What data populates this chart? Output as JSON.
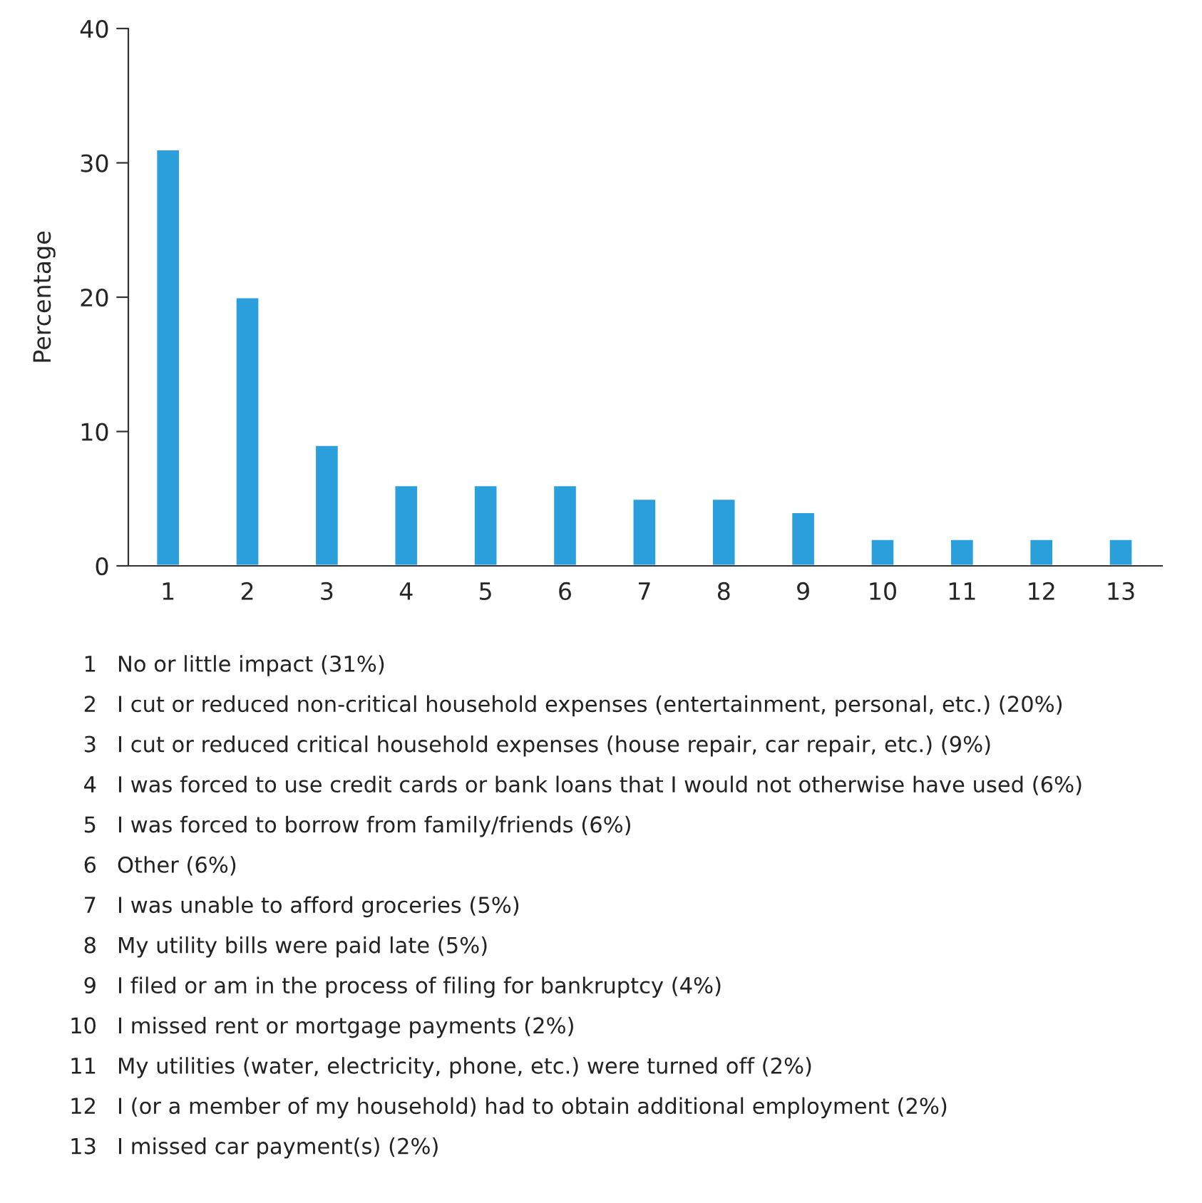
{
  "chart_data": {
    "type": "bar",
    "ylabel": "Percentage",
    "categories": [
      "1",
      "2",
      "3",
      "4",
      "5",
      "6",
      "7",
      "8",
      "9",
      "10",
      "11",
      "12",
      "13"
    ],
    "values": [
      31,
      20,
      9,
      6,
      6,
      6,
      5,
      5,
      4,
      2,
      2,
      2,
      2
    ],
    "color": "#2b9fdc",
    "ylim": [
      0,
      40
    ],
    "yticks": [
      0,
      10,
      20,
      30,
      40
    ],
    "grid": false,
    "annotations": [
      "No or little impact (31%)",
      "I cut or reduced non-critical household expenses (entertainment, personal, etc.) (20%)",
      "I cut or reduced critical household expenses (house repair, car repair, etc.) (9%)",
      "I was forced to use credit cards or bank loans that I would not otherwise have used (6%)",
      "I was forced to borrow from family/friends (6%)",
      "Other (6%)",
      "I was unable to afford groceries (5%)",
      "My utility bills were paid late (5%)",
      "I filed or am in the process of filing for bankruptcy (4%)",
      "I missed rent or mortgage payments (2%)",
      "My utilities (water, electricity, phone, etc.) were turned off (2%)",
      "I (or a member of my household) had to obtain additional employment (2%)",
      "I missed car payment(s) (2%)"
    ]
  }
}
